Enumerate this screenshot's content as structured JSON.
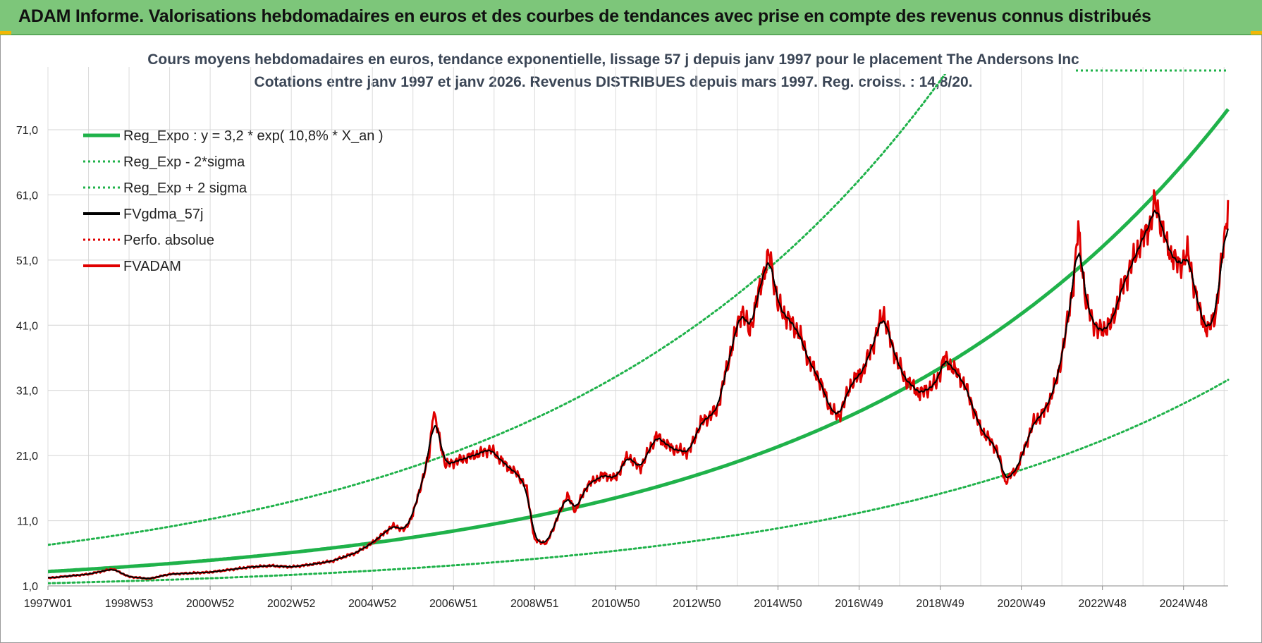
{
  "header": {
    "title": "ADAM Informe. Valorisations hebdomadaires en euros et des courbes de tendances avec prise en compte des revenus connus distribués"
  },
  "chart_data": {
    "type": "line",
    "title_line1": "Cours moyens hebdomadaires en euros, tendance exponentielle, lissage 57 j depuis janv 1997  pour le placement The Andersons Inc",
    "title_line2": "Cotations entre janv 1997 et janv 2026. Revenus DISTRIBUES depuis mars 1997.  Reg. croiss. : 14,8/20.",
    "y_ticks": [
      "71,0",
      "61,0",
      "51,0",
      "41,0",
      "31,0",
      "21,0",
      "11,0",
      "1,0"
    ],
    "y_tick_values": [
      71,
      61,
      51,
      41,
      31,
      21,
      11,
      1
    ],
    "ylim": [
      1,
      79
    ],
    "x_ticks": [
      "1997W01",
      "1998W53",
      "2000W52",
      "2002W52",
      "2004W52",
      "2006W51",
      "2008W51",
      "2010W50",
      "2012W50",
      "2014W50",
      "2016W49",
      "2018W49",
      "2020W49",
      "2022W48",
      "2024W48"
    ],
    "x_tick_years": [
      1997,
      1999,
      2001,
      2003,
      2005,
      2007,
      2009,
      2011,
      2013,
      2015,
      2017,
      2019,
      2021,
      2023,
      2025
    ],
    "xlim": [
      1997,
      2026.1
    ],
    "legend_position": "top-left",
    "grid": true,
    "series": [
      {
        "name": "Reg_Expo : y = 3,2 * exp( 10,8% *  X_an )",
        "color": "#1fb24a",
        "style": "solid",
        "kind": "exp",
        "a": 3.2,
        "b": 0.108,
        "factor": 1.0
      },
      {
        "name": "Reg_Exp - 2*sigma",
        "color": "#1fb24a",
        "style": "dotted",
        "kind": "exp",
        "a": 3.2,
        "b": 0.108,
        "factor": 0.44
      },
      {
        "name": "Reg_Exp + 2 sigma",
        "color": "#1fb24a",
        "style": "dotted",
        "kind": "exp",
        "a": 3.2,
        "b": 0.108,
        "factor": 2.28
      },
      {
        "name": "FVgdma_57j",
        "color": "#000000",
        "style": "solid",
        "kind": "smooth"
      },
      {
        "name": "Perfo. absolue",
        "color": "#e00000",
        "style": "dotted",
        "kind": "none"
      },
      {
        "name": "FVADAM",
        "color": "#e00000",
        "style": "solid",
        "kind": "data"
      }
    ],
    "price_points": [
      [
        1997.0,
        2.2
      ],
      [
        1997.5,
        2.5
      ],
      [
        1998.0,
        2.8
      ],
      [
        1998.6,
        3.6
      ],
      [
        1999.0,
        2.4
      ],
      [
        1999.5,
        2.1
      ],
      [
        2000.0,
        2.8
      ],
      [
        2001.0,
        3.1
      ],
      [
        2002.0,
        3.9
      ],
      [
        2002.5,
        4.1
      ],
      [
        2003.0,
        3.9
      ],
      [
        2003.5,
        4.3
      ],
      [
        2004.0,
        4.8
      ],
      [
        2004.6,
        6.1
      ],
      [
        2005.0,
        7.6
      ],
      [
        2005.5,
        10.2
      ],
      [
        2005.8,
        9.6
      ],
      [
        2006.0,
        12.0
      ],
      [
        2006.4,
        21.0
      ],
      [
        2006.5,
        28.0
      ],
      [
        2006.8,
        19.5
      ],
      [
        2007.0,
        20.0
      ],
      [
        2007.5,
        21.0
      ],
      [
        2007.9,
        22.0
      ],
      [
        2008.3,
        19.5
      ],
      [
        2008.6,
        18.0
      ],
      [
        2008.8,
        16.0
      ],
      [
        2009.0,
        8.0
      ],
      [
        2009.3,
        7.5
      ],
      [
        2009.6,
        12.0
      ],
      [
        2009.8,
        15.0
      ],
      [
        2010.0,
        12.5
      ],
      [
        2010.3,
        16.5
      ],
      [
        2010.7,
        18.0
      ],
      [
        2011.0,
        17.5
      ],
      [
        2011.3,
        21.0
      ],
      [
        2011.6,
        19.0
      ],
      [
        2012.0,
        24.0
      ],
      [
        2012.4,
        22.0
      ],
      [
        2012.8,
        21.5
      ],
      [
        2013.1,
        26.0
      ],
      [
        2013.5,
        28.0
      ],
      [
        2013.8,
        36.0
      ],
      [
        2014.1,
        43.5
      ],
      [
        2014.3,
        40.0
      ],
      [
        2014.6,
        48.0
      ],
      [
        2014.8,
        52.0
      ],
      [
        2015.0,
        44.0
      ],
      [
        2015.5,
        40.0
      ],
      [
        2015.8,
        35.0
      ],
      [
        2016.0,
        33.0
      ],
      [
        2016.3,
        28.0
      ],
      [
        2016.5,
        27.0
      ],
      [
        2016.8,
        32.0
      ],
      [
        2017.1,
        34.0
      ],
      [
        2017.4,
        39.0
      ],
      [
        2017.6,
        43.0
      ],
      [
        2017.8,
        38.0
      ],
      [
        2018.1,
        33.0
      ],
      [
        2018.5,
        30.5
      ],
      [
        2018.9,
        32.0
      ],
      [
        2019.1,
        36.0
      ],
      [
        2019.3,
        34.5
      ],
      [
        2019.6,
        32.0
      ],
      [
        2020.0,
        25.0
      ],
      [
        2020.4,
        22.0
      ],
      [
        2020.6,
        17.0
      ],
      [
        2020.9,
        19.0
      ],
      [
        2021.3,
        26.0
      ],
      [
        2021.6,
        28.0
      ],
      [
        2021.9,
        33.0
      ],
      [
        2022.1,
        40.0
      ],
      [
        2022.3,
        48.0
      ],
      [
        2022.4,
        56.0
      ],
      [
        2022.6,
        44.0
      ],
      [
        2022.9,
        40.0
      ],
      [
        2023.2,
        41.0
      ],
      [
        2023.5,
        47.0
      ],
      [
        2023.9,
        53.0
      ],
      [
        2024.2,
        57.0
      ],
      [
        2024.3,
        60.0
      ],
      [
        2024.6,
        53.0
      ],
      [
        2024.9,
        50.0
      ],
      [
        2025.1,
        52.0
      ],
      [
        2025.4,
        43.0
      ],
      [
        2025.6,
        40.0
      ],
      [
        2025.8,
        43.0
      ],
      [
        2026.0,
        54.0
      ],
      [
        2026.1,
        60.0
      ]
    ]
  }
}
